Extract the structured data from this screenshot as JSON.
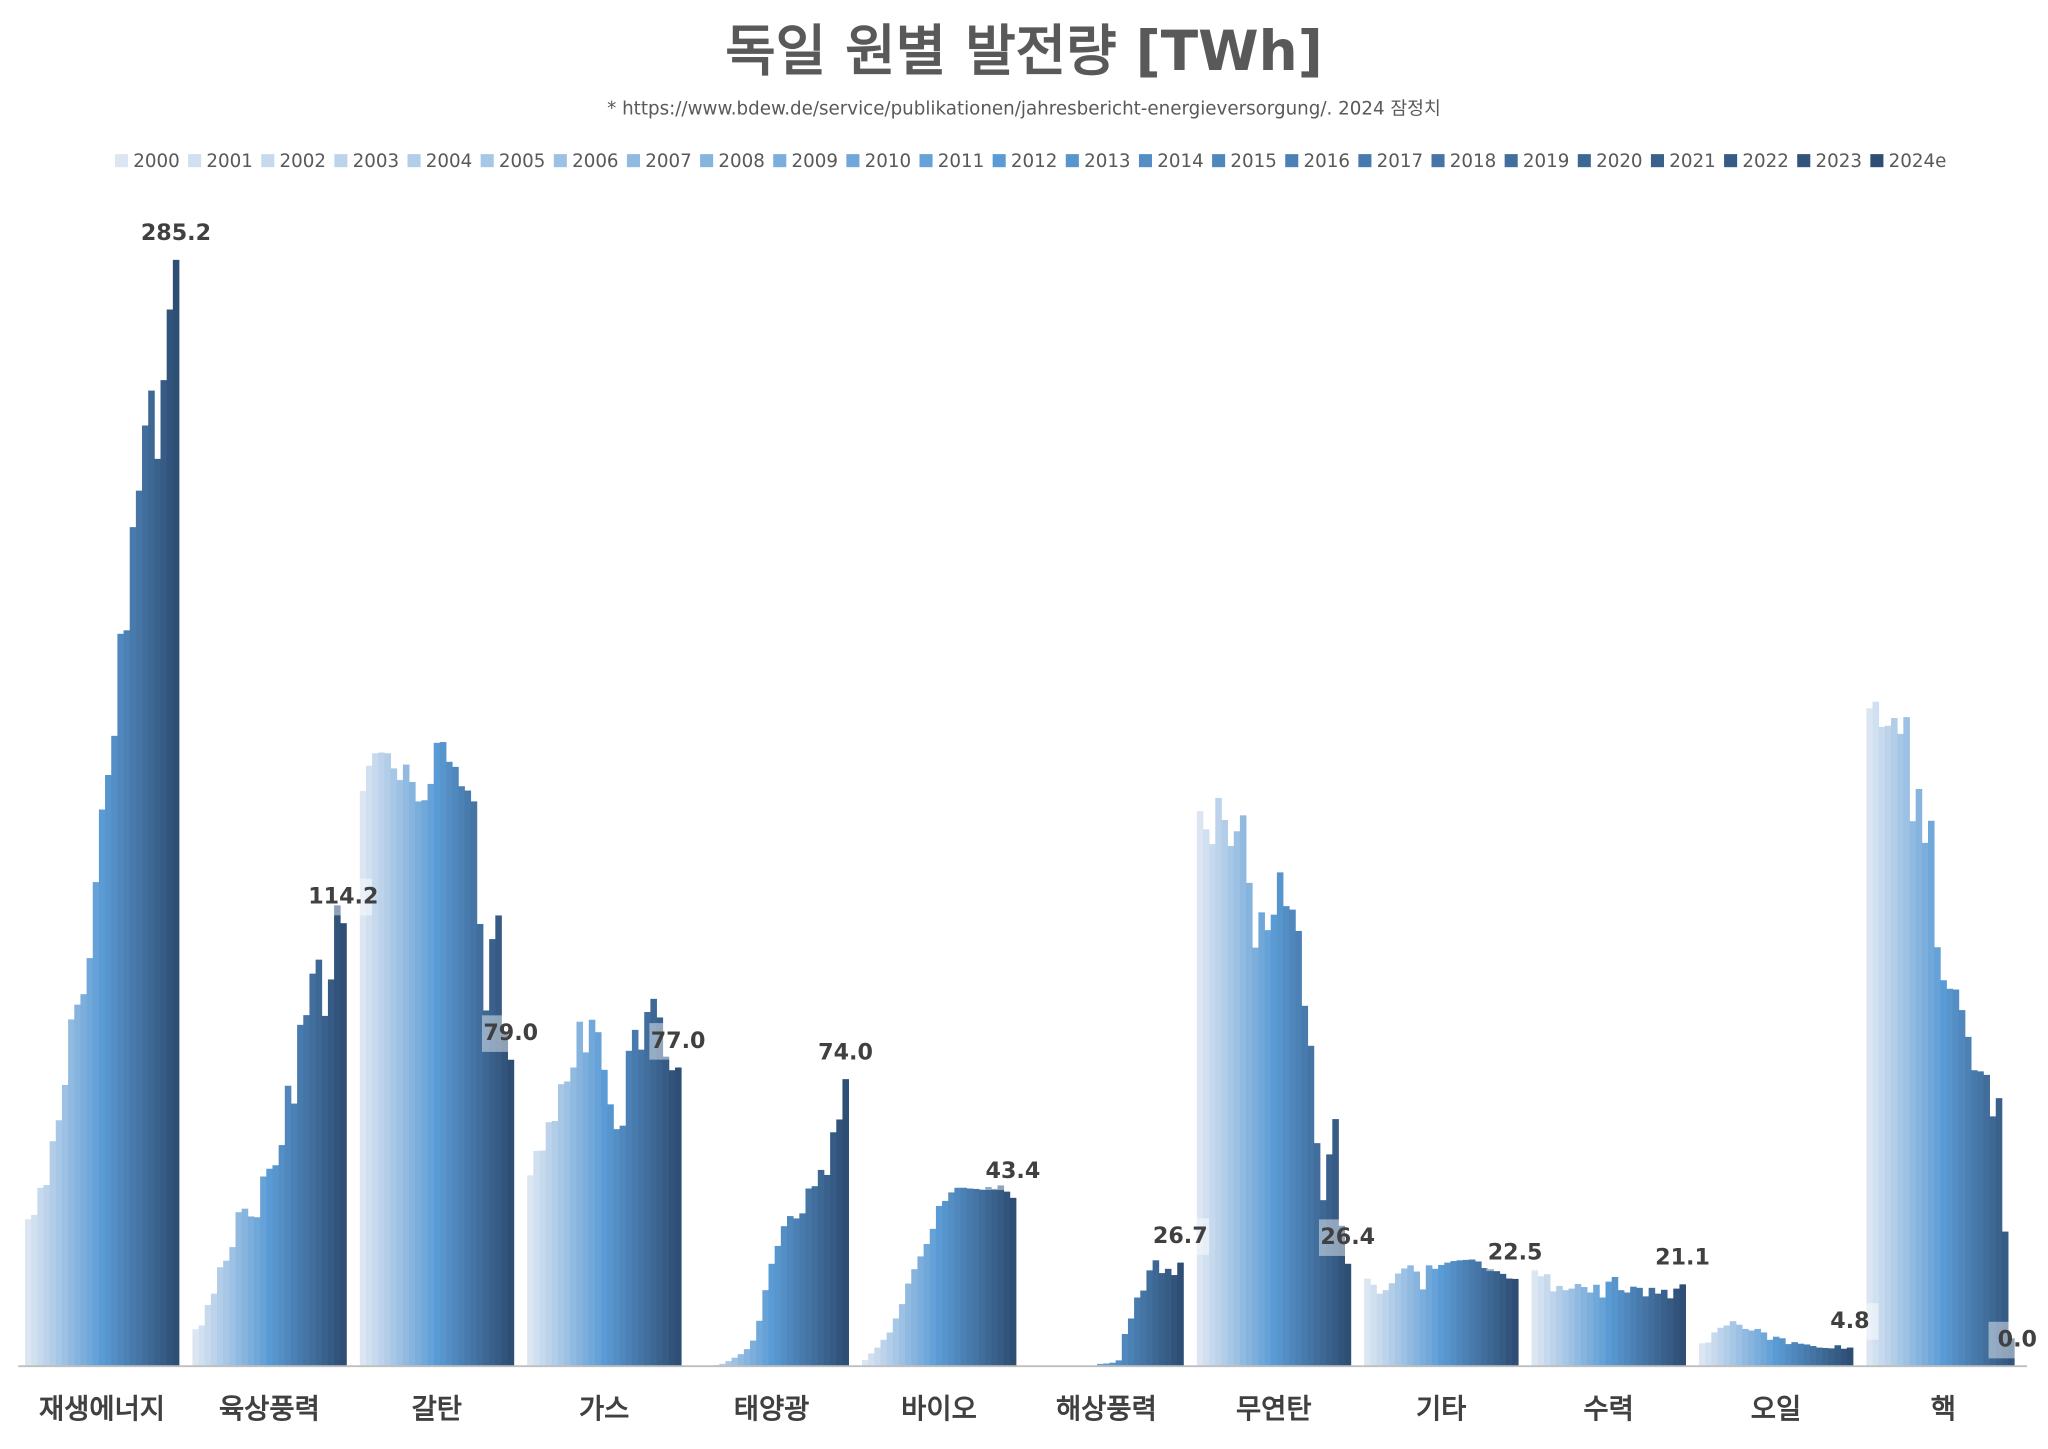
{
  "chart_data": {
    "type": "bar",
    "title": "독일 원별 발전량 [TWh]",
    "subtitle": "* https://www.bdew.de/service/publikationen/jahresbericht-energieversorgung/. 2024 잠정치",
    "categories": [
      "재생에너지",
      "육상풍력",
      "갈탄",
      "가스",
      "태양광",
      "바이오",
      "해상풍력",
      "무연탄",
      "기타",
      "수력",
      "오일",
      "핵"
    ],
    "ylim": [
      0,
      300
    ],
    "legend": "top",
    "series": [
      {
        "name": "2000",
        "color": "#dce6f2",
        "values": [
          37.9,
          9.5,
          148.3,
          49.2,
          0.0,
          1.6,
          0.0,
          143.1,
          22.6,
          24.9,
          5.9,
          169.6
        ]
      },
      {
        "name": "2001",
        "color": "#d1e0f0",
        "values": [
          39.0,
          10.5,
          154.8,
          55.5,
          0.1,
          3.3,
          0.0,
          138.4,
          21.0,
          23.2,
          6.1,
          171.3
        ]
      },
      {
        "name": "2002",
        "color": "#c7daed",
        "values": [
          46.0,
          15.8,
          158.0,
          55.6,
          0.2,
          4.8,
          0.0,
          134.6,
          18.7,
          23.7,
          8.7,
          164.8
        ]
      },
      {
        "name": "2003",
        "color": "#bcd3eb",
        "values": [
          46.7,
          18.7,
          158.2,
          62.9,
          0.3,
          6.8,
          0.0,
          146.5,
          19.6,
          19.3,
          9.9,
          165.1
        ]
      },
      {
        "name": "2004",
        "color": "#b1cde8",
        "values": [
          58.0,
          25.5,
          158.0,
          63.2,
          0.6,
          8.7,
          0.0,
          140.8,
          21.4,
          20.7,
          10.5,
          167.1
        ]
      },
      {
        "name": "2005",
        "color": "#a6c7e6",
        "values": [
          63.4,
          27.2,
          154.1,
          72.7,
          1.3,
          12.3,
          0.0,
          134.1,
          23.9,
          19.6,
          11.6,
          163.0
        ]
      },
      {
        "name": "2006",
        "color": "#9cc1e4",
        "values": [
          72.5,
          30.7,
          151.1,
          73.4,
          2.2,
          16.0,
          0.0,
          137.9,
          25.2,
          20.0,
          10.7,
          167.3
        ]
      },
      {
        "name": "2007",
        "color": "#91bae1",
        "values": [
          89.4,
          39.7,
          155.1,
          77.0,
          3.1,
          21.3,
          0.0,
          142.0,
          26.0,
          21.2,
          9.6,
          140.5
        ]
      },
      {
        "name": "2008",
        "color": "#86b4df",
        "values": [
          93.2,
          40.6,
          150.6,
          88.8,
          4.4,
          25.0,
          0.0,
          124.6,
          24.4,
          20.4,
          9.2,
          148.8
        ]
      },
      {
        "name": "2009",
        "color": "#7baedc",
        "values": [
          95.9,
          38.6,
          145.6,
          80.9,
          6.6,
          28.3,
          0.0,
          107.9,
          19.8,
          19.0,
          9.6,
          134.9
        ]
      },
      {
        "name": "2010",
        "color": "#71a8da",
        "values": [
          105.2,
          38.4,
          145.9,
          89.3,
          11.7,
          31.5,
          0.2,
          117.0,
          26.0,
          21.0,
          8.7,
          140.6
        ]
      },
      {
        "name": "2011",
        "color": "#66a1d7",
        "values": [
          124.8,
          48.9,
          150.1,
          86.1,
          19.6,
          35.4,
          0.6,
          112.4,
          25.1,
          17.7,
          6.8,
          108.0
        ]
      },
      {
        "name": "2012",
        "color": "#5b9bd5",
        "values": [
          143.5,
          50.9,
          160.7,
          76.4,
          26.4,
          41.3,
          0.7,
          116.4,
          26.1,
          21.8,
          7.6,
          99.5
        ]
      },
      {
        "name": "2013",
        "color": "#5795cd",
        "values": [
          152.4,
          51.8,
          160.9,
          67.5,
          31.0,
          42.6,
          0.9,
          127.3,
          26.7,
          23.0,
          7.2,
          97.3
        ]
      },
      {
        "name": "2014",
        "color": "#548ec5",
        "values": [
          162.5,
          57.0,
          155.8,
          61.1,
          36.1,
          44.8,
          1.5,
          118.6,
          27.1,
          19.6,
          5.7,
          97.1
        ]
      },
      {
        "name": "2015",
        "color": "#5088bd",
        "values": [
          188.8,
          72.3,
          154.5,
          62.0,
          38.7,
          46.0,
          8.3,
          117.7,
          27.3,
          19.0,
          6.2,
          91.8
        ]
      },
      {
        "name": "2016",
        "color": "#4c81b5",
        "values": [
          189.7,
          67.7,
          149.5,
          81.3,
          38.1,
          46.0,
          12.3,
          112.2,
          27.4,
          20.5,
          5.8,
          84.9
        ]
      },
      {
        "name": "2017",
        "color": "#487bad",
        "values": [
          216.3,
          88.0,
          148.4,
          86.7,
          39.4,
          45.8,
          17.7,
          92.9,
          27.5,
          20.2,
          5.6,
          76.3
        ]
      },
      {
        "name": "2018",
        "color": "#4574a5",
        "values": [
          225.7,
          90.5,
          145.6,
          81.6,
          45.8,
          45.7,
          19.5,
          82.6,
          27.0,
          18.0,
          5.2,
          76.0
        ]
      },
      {
        "name": "2019",
        "color": "#416e9c",
        "values": [
          242.5,
          101.2,
          114.0,
          91.3,
          46.4,
          45.5,
          24.7,
          57.5,
          25.3,
          20.2,
          4.8,
          75.1
        ]
      },
      {
        "name": "2020",
        "color": "#3d6894",
        "values": [
          251.5,
          104.8,
          91.7,
          94.7,
          50.6,
          46.2,
          27.3,
          42.8,
          25.0,
          18.7,
          4.7,
          64.4
        ]
      },
      {
        "name": "2021",
        "color": "#39618c",
        "values": [
          233.9,
          90.3,
          110.1,
          89.9,
          49.3,
          45.7,
          24.0,
          54.6,
          24.5,
          19.7,
          4.6,
          69.1
        ]
      },
      {
        "name": "2022",
        "color": "#365b84",
        "values": [
          254.2,
          99.7,
          116.2,
          79.8,
          60.3,
          46.6,
          25.1,
          63.7,
          23.8,
          17.5,
          5.4,
          34.7
        ]
      },
      {
        "name": "2023",
        "color": "#32547c",
        "values": [
          272.4,
          118.8,
          86.1,
          76.3,
          63.6,
          45.0,
          23.5,
          36.2,
          22.6,
          20.0,
          4.5,
          7.2
        ]
      },
      {
        "name": "2024e",
        "color": "#2e4e74",
        "values": [
          285.2,
          114.2,
          79.0,
          77.0,
          74.0,
          43.4,
          26.7,
          26.4,
          22.5,
          21.1,
          4.8,
          0.0
        ],
        "value_labels": [
          "285.2",
          "114.2",
          "79.0",
          "77.0",
          "74.0",
          "43.4",
          "26.7",
          "26.4",
          "22.5",
          "21.1",
          "4.8",
          "0.0"
        ]
      }
    ]
  }
}
